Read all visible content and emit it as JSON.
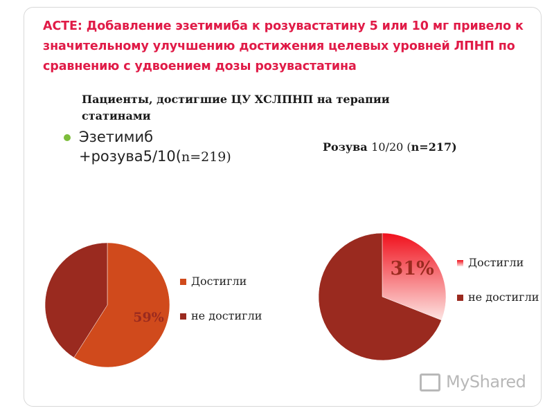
{
  "slide": {
    "title": "ACTE: Добавление эзетимиба к розувастатину 5 или 10 мг привело к значительному улучшению достижения целевых уровней ЛПНП по сравнению с удвоением дозы розувастатина",
    "subtitle": "Пациенты, достигшие ЦУ ХСЛПНП на терапии статинами"
  },
  "left_group": {
    "label_main": "Эзетимиб +розува5/10(",
    "label_n": "n=219)"
  },
  "right_group": {
    "label_bold": "Розува ",
    "label_light": "10/20 (",
    "label_n": "n=217)"
  },
  "watermark": {
    "text": "MyShared",
    "icon": "presentation-board-icon"
  },
  "colors": {
    "achieved_left": "#d04a1c",
    "not_achieved": "#9a2a1f",
    "achieved_right_top": "#f0101c",
    "achieved_right_bottom": "#fde4e2",
    "title": "#e01b47",
    "bullet": "#7dbd3b"
  },
  "chart_data": [
    {
      "type": "pie",
      "title": "",
      "categories": [
        "Достигли",
        "не достигли"
      ],
      "values": [
        59,
        41
      ],
      "data_labels": [
        "59%",
        ""
      ],
      "legend": [
        "Достигли",
        "не достигли"
      ],
      "legend_position": "right"
    },
    {
      "type": "pie",
      "title": "",
      "categories": [
        "Достигли",
        "не достигли"
      ],
      "values": [
        31,
        69
      ],
      "data_labels": [
        "31%",
        ""
      ],
      "legend": [
        "Достигли",
        "не достигли"
      ],
      "legend_position": "right"
    }
  ]
}
